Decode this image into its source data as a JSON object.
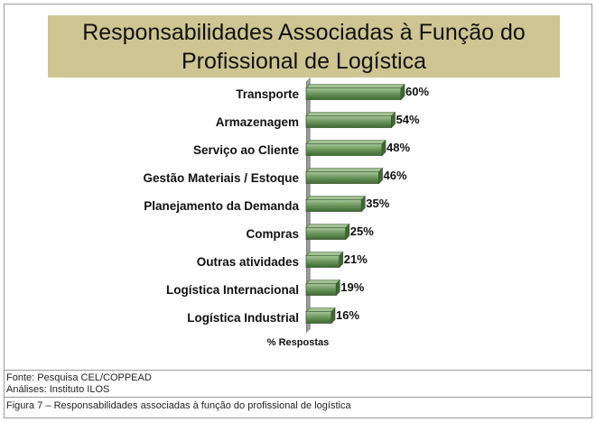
{
  "chart_data": {
    "type": "bar",
    "orientation": "horizontal",
    "title": "Responsabilidades Associadas à Função do Profissional de Logística",
    "categories": [
      "Transporte",
      "Armazenagem",
      "Serviço ao Cliente",
      "Gestão Materiais / Estoque",
      "Planejamento da Demanda",
      "Compras",
      "Outras atividades",
      "Logística Internacional",
      "Logística Industrial"
    ],
    "values": [
      60,
      54,
      48,
      46,
      35,
      25,
      21,
      19,
      16
    ],
    "value_labels": [
      "60%",
      "54%",
      "48%",
      "46%",
      "35%",
      "25%",
      "21%",
      "19%",
      "16%"
    ],
    "xlabel": "% Respostas",
    "ylabel": "",
    "xlim": [
      0,
      100
    ],
    "grid": false,
    "legend": "none",
    "bar_color": "#6f9a5f",
    "title_background": "#cfc592"
  },
  "footer": {
    "source": "Fonte: Pesquisa CEL/COPPEAD",
    "analysis": "Análises: Instituto ILOS",
    "caption": "Figura 7 – Responsabilidades associadas à função do profissional de logística"
  }
}
